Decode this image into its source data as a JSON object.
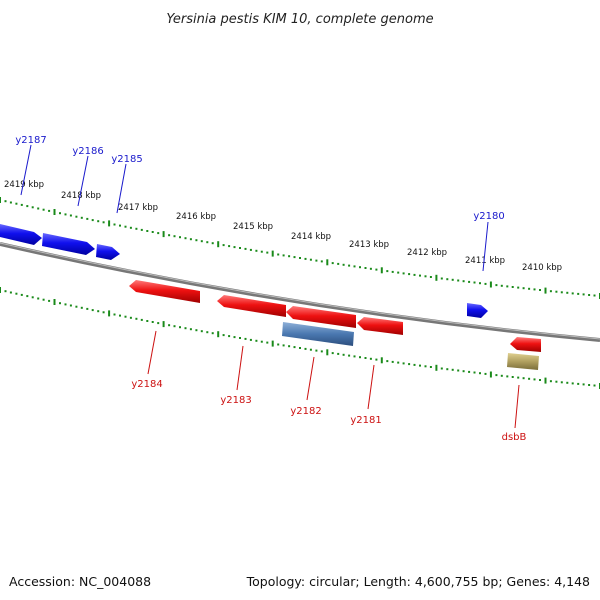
{
  "title": "Yersinia pestis KIM 10, complete genome",
  "footer": {
    "accession": "Accession: NC_004088",
    "summary": "Topology: circular; Length: 4,600,755 bp; Genes: 4,148"
  },
  "colors": {
    "backbone": "#888888",
    "forward_gene": "#1010ee",
    "reverse_gene": "#ee1111",
    "other_gene_blue": "#4a78b0",
    "other_gene_olive": "#b0a060",
    "tick": "#1a8a1a",
    "forward_label": "#1a1acc",
    "reverse_label": "#cc1111"
  },
  "scale_labels": [
    "2419 kbp",
    "2418 kbp",
    "2417 kbp",
    "2416 kbp",
    "2415 kbp",
    "2414 kbp",
    "2413 kbp",
    "2412 kbp",
    "2411 kbp",
    "2410 kbp"
  ],
  "forward_genes": [
    {
      "label": "y2187"
    },
    {
      "label": "y2186"
    },
    {
      "label": "y2185"
    },
    {
      "label": "y2180"
    }
  ],
  "reverse_genes": [
    {
      "label": "y2184"
    },
    {
      "label": "y2183"
    },
    {
      "label": "y2182"
    },
    {
      "label": "y2181"
    },
    {
      "label": "dsbB"
    }
  ]
}
